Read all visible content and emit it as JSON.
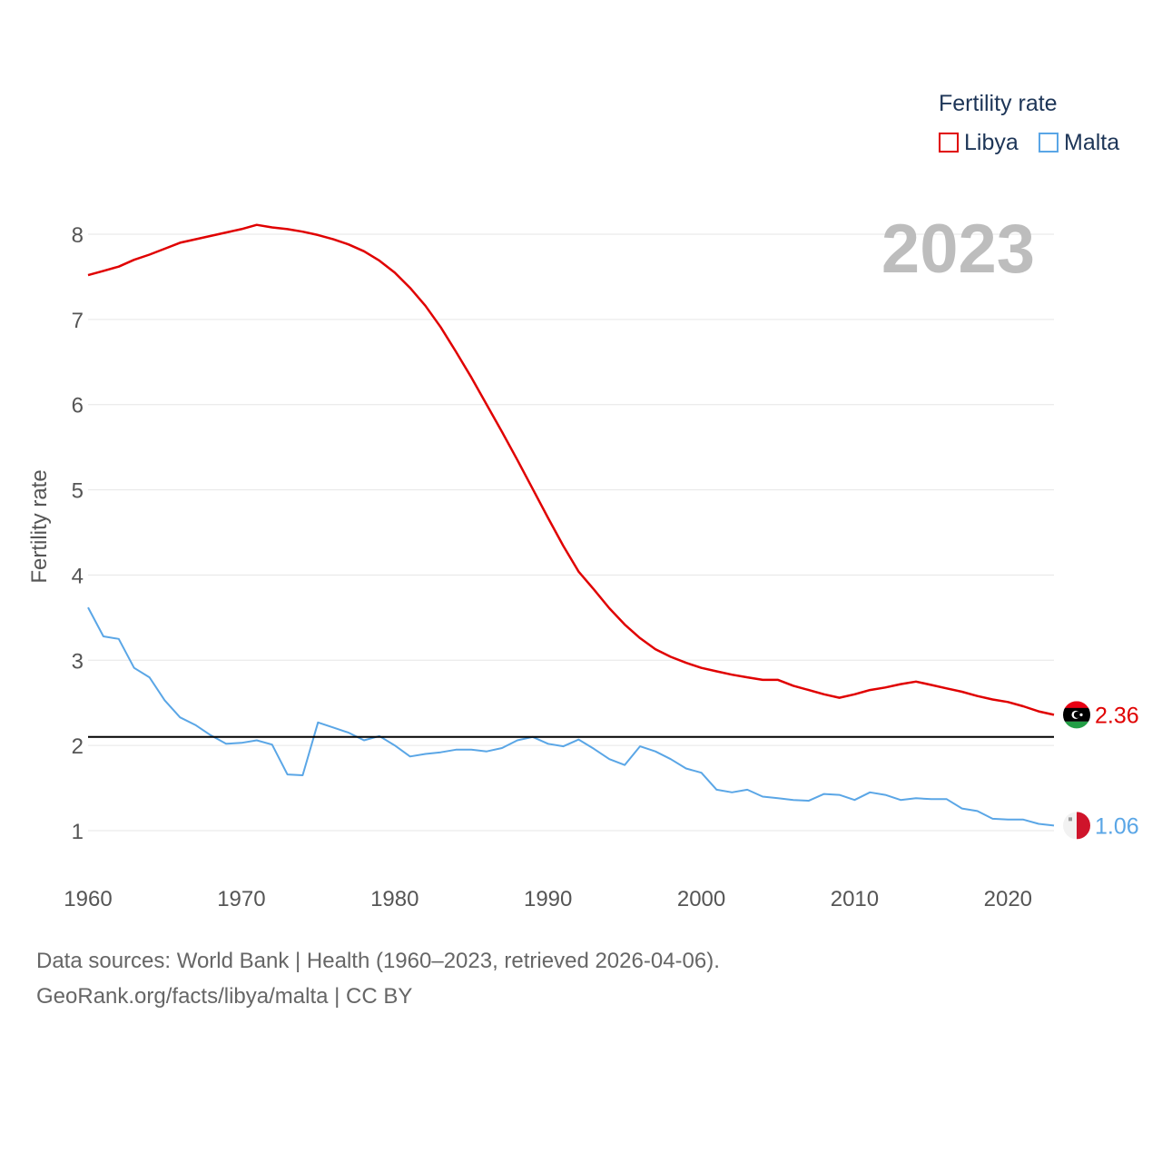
{
  "colors": {
    "libya": "#e00000",
    "malta": "#5aa6e6",
    "grid": "#e6e6e6",
    "axis_text": "#555555",
    "year_label": "#bdbdbd",
    "reference": "#000000"
  },
  "legend": {
    "title": "Fertility rate",
    "items": [
      {
        "label": "Libya"
      },
      {
        "label": "Malta"
      }
    ]
  },
  "source": {
    "line1": "Data sources: World Bank | Health (1960–2023, retrieved 2026-04-06).",
    "line2": "GeoRank.org/facts/libya/malta | CC BY"
  },
  "chart_data": {
    "type": "line",
    "title": "2023",
    "xlabel": "",
    "ylabel": "Fertility rate",
    "xlim": [
      1960,
      2023
    ],
    "ylim": [
      0.5,
      8.5
    ],
    "x_ticks": [
      1960,
      1970,
      1980,
      1990,
      2000,
      2010,
      2020
    ],
    "y_ticks": [
      1,
      2,
      3,
      4,
      5,
      6,
      7,
      8
    ],
    "reference_line": 2.1,
    "x": [
      1960,
      1961,
      1962,
      1963,
      1964,
      1965,
      1966,
      1967,
      1968,
      1969,
      1970,
      1971,
      1972,
      1973,
      1974,
      1975,
      1976,
      1977,
      1978,
      1979,
      1980,
      1981,
      1982,
      1983,
      1984,
      1985,
      1986,
      1987,
      1988,
      1989,
      1990,
      1991,
      1992,
      1993,
      1994,
      1995,
      1996,
      1997,
      1998,
      1999,
      2000,
      2001,
      2002,
      2003,
      2004,
      2005,
      2006,
      2007,
      2008,
      2009,
      2010,
      2011,
      2012,
      2013,
      2014,
      2015,
      2016,
      2017,
      2018,
      2019,
      2020,
      2021,
      2022,
      2023
    ],
    "series": [
      {
        "name": "Libya",
        "end_label": "2.36",
        "values": [
          7.52,
          7.57,
          7.62,
          7.7,
          7.76,
          7.83,
          7.9,
          7.94,
          7.98,
          8.02,
          8.06,
          8.11,
          8.08,
          8.06,
          8.03,
          7.99,
          7.94,
          7.88,
          7.8,
          7.69,
          7.55,
          7.37,
          7.16,
          6.91,
          6.62,
          6.32,
          6.0,
          5.68,
          5.35,
          5.01,
          4.67,
          4.34,
          4.04,
          3.83,
          3.61,
          3.42,
          3.26,
          3.13,
          3.04,
          2.97,
          2.91,
          2.87,
          2.83,
          2.8,
          2.77,
          2.77,
          2.7,
          2.65,
          2.6,
          2.56,
          2.6,
          2.65,
          2.68,
          2.72,
          2.75,
          2.71,
          2.67,
          2.63,
          2.58,
          2.54,
          2.51,
          2.46,
          2.4,
          2.36
        ]
      },
      {
        "name": "Malta",
        "end_label": "1.06",
        "values": [
          3.62,
          3.28,
          3.25,
          2.91,
          2.8,
          2.53,
          2.33,
          2.24,
          2.12,
          2.02,
          2.03,
          2.06,
          2.01,
          1.66,
          1.65,
          2.27,
          2.21,
          2.15,
          2.06,
          2.11,
          2.0,
          1.87,
          1.9,
          1.92,
          1.95,
          1.95,
          1.93,
          1.97,
          2.06,
          2.1,
          2.02,
          1.99,
          2.07,
          1.96,
          1.84,
          1.77,
          1.99,
          1.93,
          1.84,
          1.73,
          1.68,
          1.48,
          1.45,
          1.48,
          1.4,
          1.38,
          1.36,
          1.35,
          1.43,
          1.42,
          1.36,
          1.45,
          1.42,
          1.36,
          1.38,
          1.37,
          1.37,
          1.26,
          1.23,
          1.14,
          1.13,
          1.13,
          1.08,
          1.06
        ]
      }
    ]
  }
}
